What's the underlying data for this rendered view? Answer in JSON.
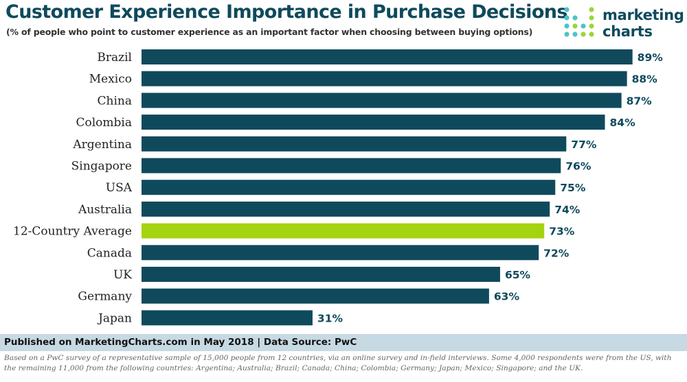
{
  "header": {
    "title": "Customer Experience Importance in Purchase Decisions",
    "subtitle": "(% of people who point to customer experience as an important factor when choosing between buying options)"
  },
  "logo": {
    "line1": "marketing",
    "line2": "charts",
    "icon": "dot-grid-logo-icon",
    "dot_colors": [
      "#4fc3c9",
      "#9ad63a"
    ]
  },
  "colors": {
    "bar": "#0f4a5c",
    "highlight": "#a4d40f",
    "label": "#0f4a5c"
  },
  "chart_data": {
    "type": "bar",
    "orientation": "horizontal",
    "title": "Customer Experience Importance in Purchase Decisions",
    "subtitle": "(% of people who point to customer experience as an important factor when choosing between buying options)",
    "xlabel": "",
    "ylabel": "",
    "xlim": [
      0,
      100
    ],
    "grid": false,
    "categories": [
      "Brazil",
      "Mexico",
      "China",
      "Colombia",
      "Argentina",
      "Singapore",
      "USA",
      "Australia",
      "12-Country Average",
      "Canada",
      "UK",
      "Germany",
      "Japan"
    ],
    "values": [
      89,
      88,
      87,
      84,
      77,
      76,
      75,
      74,
      73,
      72,
      65,
      63,
      31
    ],
    "value_labels": [
      "89%",
      "88%",
      "87%",
      "84%",
      "77%",
      "76%",
      "75%",
      "74%",
      "73%",
      "72%",
      "65%",
      "63%",
      "31%"
    ],
    "highlight_category": "12-Country Average"
  },
  "footer": {
    "source": "Published on MarketingCharts.com in May 2018 | Data Source: PwC",
    "note": "Based on a PwC survey of a representative sample of 15,000 people from 12 countries, via an online survey and in-field interviews. Some 4,000 respondents were from the US, with the remaining 11,000 from the following countries: Argentina; Australia; Brazil; Canada; China; Colombia; Germany; Japan; Mexico; Singapore; and the UK."
  }
}
